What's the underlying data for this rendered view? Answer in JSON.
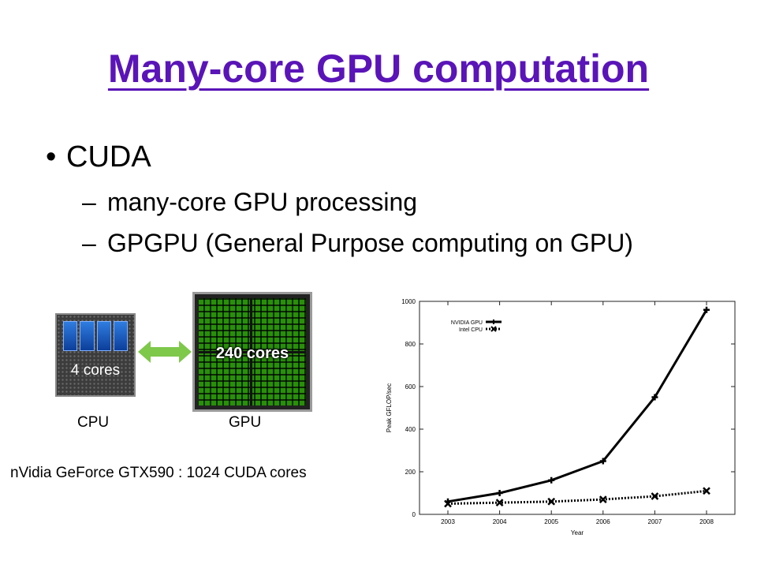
{
  "slide": {
    "title": "Many-core GPU computation",
    "bullet": "CUDA",
    "bullet_marker": "•",
    "sub_marker": "–",
    "sub_items": [
      "many-core GPU processing",
      "GPGPU (General Purpose computing on GPU)"
    ],
    "cpu_chip_label": "4 cores",
    "gpu_chip_label": "240 cores",
    "cpu_caption": "CPU",
    "gpu_caption": "GPU",
    "gtx_note": "nVidia GeForce GTX590 : 1024 CUDA cores"
  },
  "chart_data": {
    "type": "line",
    "title": "",
    "xlabel": "Year",
    "ylabel": "Peak GFLOP/sec",
    "x": [
      2003,
      2004,
      2005,
      2006,
      2007,
      2008
    ],
    "xlim": [
      2003,
      2008
    ],
    "ylim": [
      0,
      1000
    ],
    "yticks": [
      0,
      200,
      400,
      600,
      800,
      1000
    ],
    "legend_position": "top-left",
    "grid": false,
    "series": [
      {
        "name": "NVIDIA GPU",
        "values": [
          60,
          100,
          160,
          250,
          550,
          960
        ],
        "style": "solid",
        "marker": "+"
      },
      {
        "name": "Intel CPU",
        "values": [
          50,
          55,
          60,
          70,
          85,
          110
        ],
        "style": "dotted",
        "marker": "x"
      }
    ]
  }
}
